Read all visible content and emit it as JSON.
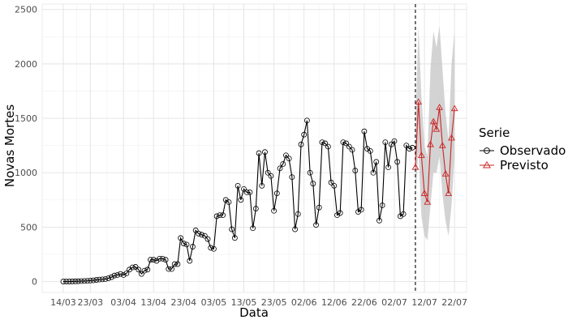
{
  "chart_data": {
    "type": "line",
    "title": "",
    "xlabel": "Data",
    "ylabel": "Novas Mortes",
    "ylim": [
      -100,
      2550
    ],
    "xlim": [
      "2020-03-07",
      "2020-07-26"
    ],
    "y_ticks": [
      0,
      500,
      1000,
      1500,
      2000,
      2500
    ],
    "x_ticks": [
      {
        "date": "2020-03-14",
        "label": "14/03"
      },
      {
        "date": "2020-03-23",
        "label": "23/03"
      },
      {
        "date": "2020-04-03",
        "label": "03/04"
      },
      {
        "date": "2020-04-13",
        "label": "13/04"
      },
      {
        "date": "2020-04-23",
        "label": "23/04"
      },
      {
        "date": "2020-05-03",
        "label": "03/05"
      },
      {
        "date": "2020-05-13",
        "label": "13/05"
      },
      {
        "date": "2020-05-23",
        "label": "23/05"
      },
      {
        "date": "2020-06-02",
        "label": "02/06"
      },
      {
        "date": "2020-06-12",
        "label": "12/06"
      },
      {
        "date": "2020-06-22",
        "label": "22/06"
      },
      {
        "date": "2020-07-02",
        "label": "02/07"
      },
      {
        "date": "2020-07-12",
        "label": "12/07"
      },
      {
        "date": "2020-07-22",
        "label": "22/07"
      }
    ],
    "grid": true,
    "legend_position": "right",
    "legend_title": "Serie",
    "cutoff_date": "2020-07-09",
    "series": [
      {
        "name": "Observado",
        "color": "#000000",
        "marker": "circle",
        "start_date": "2020-03-14",
        "values": [
          0,
          0,
          0,
          1,
          2,
          3,
          4,
          5,
          6,
          9,
          11,
          15,
          18,
          20,
          23,
          30,
          40,
          55,
          60,
          70,
          60,
          75,
          110,
          130,
          135,
          110,
          70,
          100,
          110,
          200,
          200,
          190,
          210,
          210,
          200,
          115,
          115,
          160,
          160,
          400,
          350,
          340,
          190,
          320,
          470,
          440,
          430,
          420,
          390,
          310,
          300,
          600,
          610,
          610,
          750,
          730,
          480,
          400,
          880,
          750,
          850,
          820,
          820,
          490,
          670,
          1180,
          880,
          1190,
          1000,
          970,
          650,
          810,
          1040,
          1080,
          1160,
          1130,
          960,
          480,
          620,
          1260,
          1350,
          1480,
          1000,
          900,
          520,
          680,
          1280,
          1270,
          1240,
          910,
          880,
          610,
          630,
          1280,
          1270,
          1240,
          1210,
          1020,
          640,
          660,
          1380,
          1220,
          1200,
          1000,
          1100,
          560,
          700,
          1280,
          1050,
          1260,
          1290,
          1100,
          600,
          620,
          1250,
          1220,
          1230
        ]
      },
      {
        "name": "Previsto",
        "color": "#cc2222",
        "marker": "triangle",
        "dates": [
          "2020-07-09",
          "2020-07-10",
          "2020-07-11",
          "2020-07-12",
          "2020-07-13",
          "2020-07-14",
          "2020-07-15",
          "2020-07-16",
          "2020-07-17",
          "2020-07-18",
          "2020-07-19",
          "2020-07-20",
          "2020-07-21",
          "2020-07-22"
        ],
        "values": [
          1050,
          1650,
          1160,
          810,
          730,
          1260,
          1470,
          1400,
          1600,
          1250,
          990,
          810,
          1320,
          1590
        ],
        "lower": [
          780,
          1200,
          600,
          420,
          380,
          700,
          1000,
          1000,
          1150,
          800,
          560,
          420,
          700,
          1150
        ],
        "upper": [
          1400,
          2350,
          1700,
          1250,
          1150,
          1950,
          2300,
          2150,
          2350,
          1950,
          1550,
          1300,
          2000,
          2300
        ]
      }
    ]
  }
}
